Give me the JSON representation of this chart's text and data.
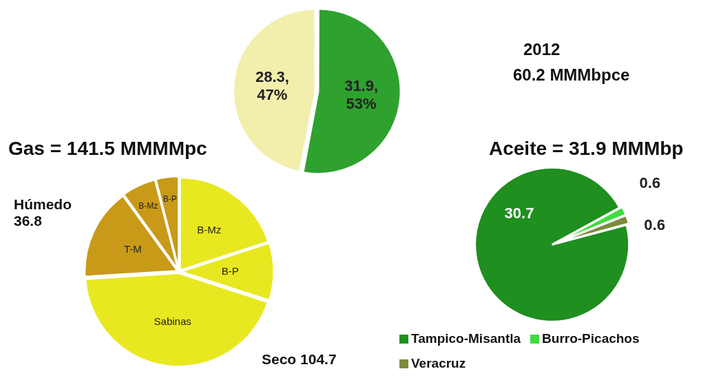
{
  "chart_data": [
    {
      "type": "pie",
      "title": "2012",
      "subtitle": "60.2 MMMbpce",
      "categories": [
        null,
        null
      ],
      "values": [
        31.9,
        28.3
      ],
      "colors": [
        "#2ea12e",
        "#f2eeac"
      ],
      "value_labels": [
        "31.9, 53%",
        "28.3, 47%"
      ]
    },
    {
      "type": "pie",
      "title": "Gas = 141.5 MMMMpc",
      "categories": [
        "B-Mz",
        "B-P",
        "Sabinas",
        "T-M",
        "B-Mz",
        "B-P"
      ],
      "values": [
        20,
        10,
        44,
        16,
        6,
        4
      ],
      "colors": [
        "#e8e820",
        "#e8e820",
        "#e8e820",
        "#c89a18",
        "#c89a18",
        "#c89a18"
      ],
      "annotations": [
        "Húmedo 36.8",
        "Seco 104.7"
      ]
    },
    {
      "type": "pie",
      "title": "Aceite = 31.9 MMMbp",
      "categories": [
        "Tampico-Misantla",
        "Burro-Picachos",
        "Veracruz"
      ],
      "values": [
        30.7,
        0.6,
        0.6
      ],
      "colors": [
        "#1f8f1f",
        "#3fdc3f",
        "#7b8b3b"
      ],
      "data_labels": true,
      "legend": "bottom"
    }
  ]
}
